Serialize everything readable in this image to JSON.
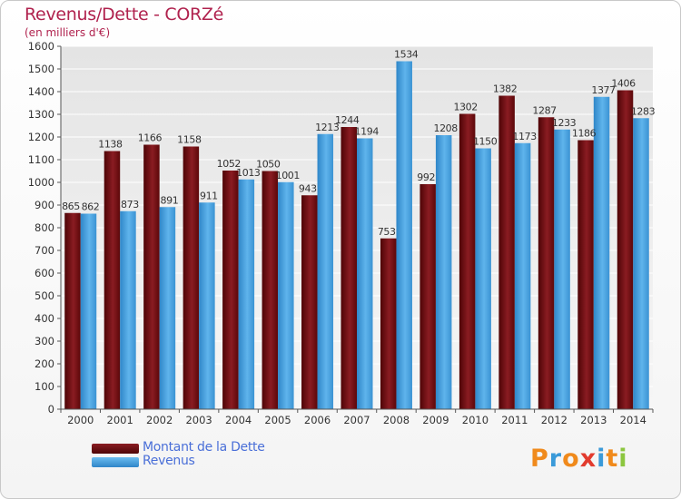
{
  "header": {
    "title": "Revenus/Dette - CORZé",
    "subtitle": "(en milliers d'€)"
  },
  "legend": [
    {
      "label": "Montant de la Dette",
      "color": "#6b0d12"
    },
    {
      "label": "Revenus",
      "color": "#4aa3df"
    }
  ],
  "logo": {
    "text": "Proxiti",
    "letters": [
      {
        "ch": "P",
        "color": "#f08a1c"
      },
      {
        "ch": "r",
        "color": "#3a9ad9"
      },
      {
        "ch": "o",
        "color": "#f08a1c"
      },
      {
        "ch": "x",
        "color": "#e23b2e"
      },
      {
        "ch": "i",
        "color": "#3a9ad9"
      },
      {
        "ch": "t",
        "color": "#f08a1c"
      },
      {
        "ch": "i",
        "color": "#8cc63f"
      }
    ]
  },
  "chart_data": {
    "type": "bar",
    "categories": [
      "2000",
      "2001",
      "2002",
      "2003",
      "2004",
      "2005",
      "2006",
      "2007",
      "2008",
      "2009",
      "2010",
      "2011",
      "2012",
      "2013",
      "2014"
    ],
    "series": [
      {
        "name": "Montant de la Dette",
        "color": "#6b0d12",
        "values": [
          865,
          1138,
          1166,
          1158,
          1052,
          1050,
          943,
          1244,
          753,
          992,
          1302,
          1382,
          1287,
          1186,
          1406
        ]
      },
      {
        "name": "Revenus",
        "color": "#4aa3df",
        "values": [
          862,
          873,
          891,
          911,
          1013,
          1001,
          1213,
          1194,
          1534,
          1208,
          1150,
          1173,
          1233,
          1377,
          1283
        ]
      }
    ],
    "ylim": [
      0,
      1600
    ],
    "yticks": [
      0,
      100,
      200,
      300,
      400,
      500,
      600,
      700,
      800,
      900,
      1000,
      1100,
      1200,
      1300,
      1400,
      1500,
      1600
    ],
    "grid": true,
    "legend_position": "bottom-left"
  }
}
